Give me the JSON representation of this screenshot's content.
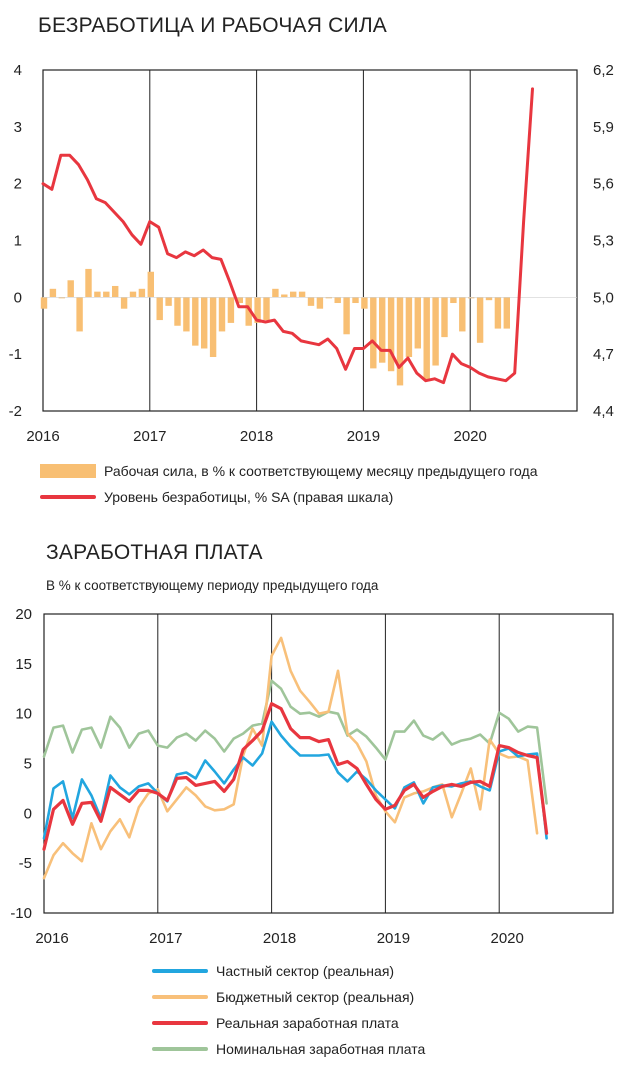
{
  "chart_data": [
    {
      "type": "bar+line",
      "title": "БЕЗРАБОТИЦА И РАБОЧАЯ СИЛА",
      "x_ticks": [
        "2016",
        "2017",
        "2018",
        "2019",
        "2020"
      ],
      "x_range": [
        2016,
        2021
      ],
      "y_left": {
        "ticks": [
          "4",
          "3",
          "2",
          "1",
          "0",
          "-1",
          "-2"
        ],
        "range": [
          -2,
          4
        ]
      },
      "y_right": {
        "ticks": [
          "6,2",
          "5,9",
          "5,6",
          "5,3",
          "5,0",
          "4,7",
          "4,4"
        ],
        "range": [
          4.4,
          6.2
        ]
      },
      "grid": "vertical at years",
      "series": [
        {
          "name": "Рабочая сила, в % к соответствующему месяцу предыдущего года",
          "kind": "bar",
          "axis": "left",
          "color": "#f8bf73",
          "x_start": "2016-01",
          "step": "month",
          "values": [
            -0.2,
            0.15,
            0.0,
            0.3,
            -0.6,
            0.5,
            0.1,
            0.1,
            0.2,
            -0.2,
            0.1,
            0.15,
            0.45,
            -0.4,
            -0.15,
            -0.5,
            -0.6,
            -0.85,
            -0.9,
            -1.05,
            -0.6,
            -0.45,
            -0.1,
            -0.5,
            -0.45,
            -0.4,
            0.15,
            0.05,
            0.1,
            0.1,
            -0.15,
            -0.2,
            0.0,
            -0.1,
            -0.65,
            -0.1,
            -0.2,
            -1.25,
            -1.15,
            -1.3,
            -1.55,
            -1.05,
            -0.9,
            -1.45,
            -1.2,
            -0.7,
            -0.1,
            -0.6,
            0.0,
            -0.8,
            -0.05,
            -0.55,
            -0.55
          ]
        },
        {
          "name": "Уровень безработицы, % SA (правая шкала)",
          "kind": "line",
          "axis": "right",
          "color": "#e8363f",
          "x_start": "2016-01",
          "step": "month",
          "values": [
            5.6,
            5.57,
            5.75,
            5.75,
            5.7,
            5.62,
            5.52,
            5.5,
            5.45,
            5.4,
            5.33,
            5.28,
            5.4,
            5.37,
            5.23,
            5.21,
            5.24,
            5.22,
            5.25,
            5.21,
            5.2,
            5.08,
            4.95,
            4.95,
            4.88,
            4.87,
            4.88,
            4.82,
            4.81,
            4.77,
            4.76,
            4.75,
            4.78,
            4.73,
            4.62,
            4.73,
            4.73,
            4.77,
            4.72,
            4.72,
            4.63,
            4.68,
            4.6,
            4.56,
            4.57,
            4.55,
            4.7,
            4.65,
            4.63,
            4.6,
            4.58,
            4.57,
            4.56,
            4.6,
            5.4,
            6.1
          ]
        }
      ]
    },
    {
      "type": "line",
      "title": "ЗАРАБОТНАЯ ПЛАТА",
      "subtitle": "В % к соответствующему периоду предыдущего года",
      "x_ticks": [
        "2016",
        "2017",
        "2018",
        "2019",
        "2020"
      ],
      "x_range": [
        2016,
        2021
      ],
      "y": {
        "ticks": [
          "20",
          "15",
          "10",
          "5",
          "0",
          "-5",
          "-10"
        ],
        "range": [
          -10,
          20
        ]
      },
      "grid": "vertical at years",
      "series": [
        {
          "name": "Частный сектор (реальная)",
          "color": "#22a6df",
          "x_start": "2016-01",
          "step": "month",
          "values": [
            -2.5,
            2.5,
            3.2,
            -0.5,
            3.4,
            1.8,
            -0.5,
            3.8,
            2.6,
            1.9,
            2.7,
            3.0,
            2.0,
            1.2,
            3.9,
            4.1,
            3.5,
            5.3,
            4.2,
            3.0,
            4.4,
            5.6,
            4.8,
            6.0,
            9.2,
            7.8,
            6.7,
            5.8,
            5.8,
            5.8,
            5.9,
            4.1,
            3.2,
            4.2,
            3.4,
            2.3,
            1.4,
            0.5,
            2.6,
            3.1,
            1.0,
            2.6,
            2.8,
            2.7,
            3.0,
            3.2,
            2.7,
            2.3,
            6.2,
            6.5,
            5.7,
            5.9,
            6.0,
            -2.5
          ]
        },
        {
          "name": "Бюджетный сектор (реальная)",
          "color": "#f8c07a",
          "x_start": "2016-01",
          "step": "month",
          "values": [
            -6.5,
            -4.2,
            -3.0,
            -4.0,
            -4.8,
            -1.0,
            -3.6,
            -1.8,
            -0.6,
            -2.4,
            0.6,
            2.0,
            2.4,
            0.2,
            1.4,
            2.6,
            1.8,
            0.7,
            0.3,
            0.4,
            0.9,
            5.8,
            8.5,
            6.8,
            15.8,
            17.6,
            14.3,
            12.3,
            11.2,
            10.0,
            10.2,
            14.3,
            8.0,
            7.0,
            5.2,
            1.8,
            0.2,
            -0.9,
            1.6,
            2.0,
            2.2,
            2.6,
            2.9,
            -0.4,
            2.0,
            4.5,
            0.4,
            7.4,
            6.0,
            5.6,
            5.7,
            5.3,
            -2.0
          ]
        },
        {
          "name": "Реальная заработная плата",
          "color": "#e8363f",
          "x_start": "2016-01",
          "step": "month",
          "values": [
            -3.6,
            0.4,
            1.3,
            -1.1,
            1.0,
            1.1,
            -0.8,
            2.6,
            1.9,
            1.2,
            2.3,
            2.3,
            2.0,
            1.3,
            3.5,
            3.6,
            2.8,
            3.0,
            3.2,
            2.2,
            3.4,
            6.4,
            7.3,
            8.3,
            11.0,
            10.5,
            8.5,
            7.6,
            7.6,
            7.2,
            7.4,
            4.9,
            5.2,
            4.5,
            2.9,
            1.4,
            0.4,
            0.8,
            2.3,
            2.9,
            1.6,
            2.2,
            2.7,
            2.9,
            2.7,
            3.1,
            3.2,
            2.7,
            6.8,
            6.6,
            6.1,
            5.8,
            5.6,
            -2.0
          ]
        },
        {
          "name": "Номинальная заработная плата",
          "color": "#9fc59a",
          "x_start": "2016-01",
          "step": "month",
          "values": [
            5.7,
            8.6,
            8.8,
            6.1,
            8.4,
            8.6,
            6.6,
            9.7,
            8.6,
            6.6,
            8.0,
            8.3,
            6.8,
            6.6,
            7.6,
            8.0,
            7.3,
            8.3,
            7.5,
            6.2,
            7.5,
            8.0,
            8.8,
            9.0,
            13.3,
            12.5,
            10.7,
            10.0,
            10.1,
            9.7,
            10.2,
            10.0,
            7.8,
            8.4,
            7.7,
            6.6,
            5.4,
            8.2,
            8.2,
            9.3,
            7.8,
            7.4,
            8.1,
            6.9,
            7.3,
            7.5,
            7.9,
            7.0,
            10.1,
            9.5,
            8.2,
            8.7,
            8.6,
            1.0
          ]
        }
      ]
    }
  ]
}
